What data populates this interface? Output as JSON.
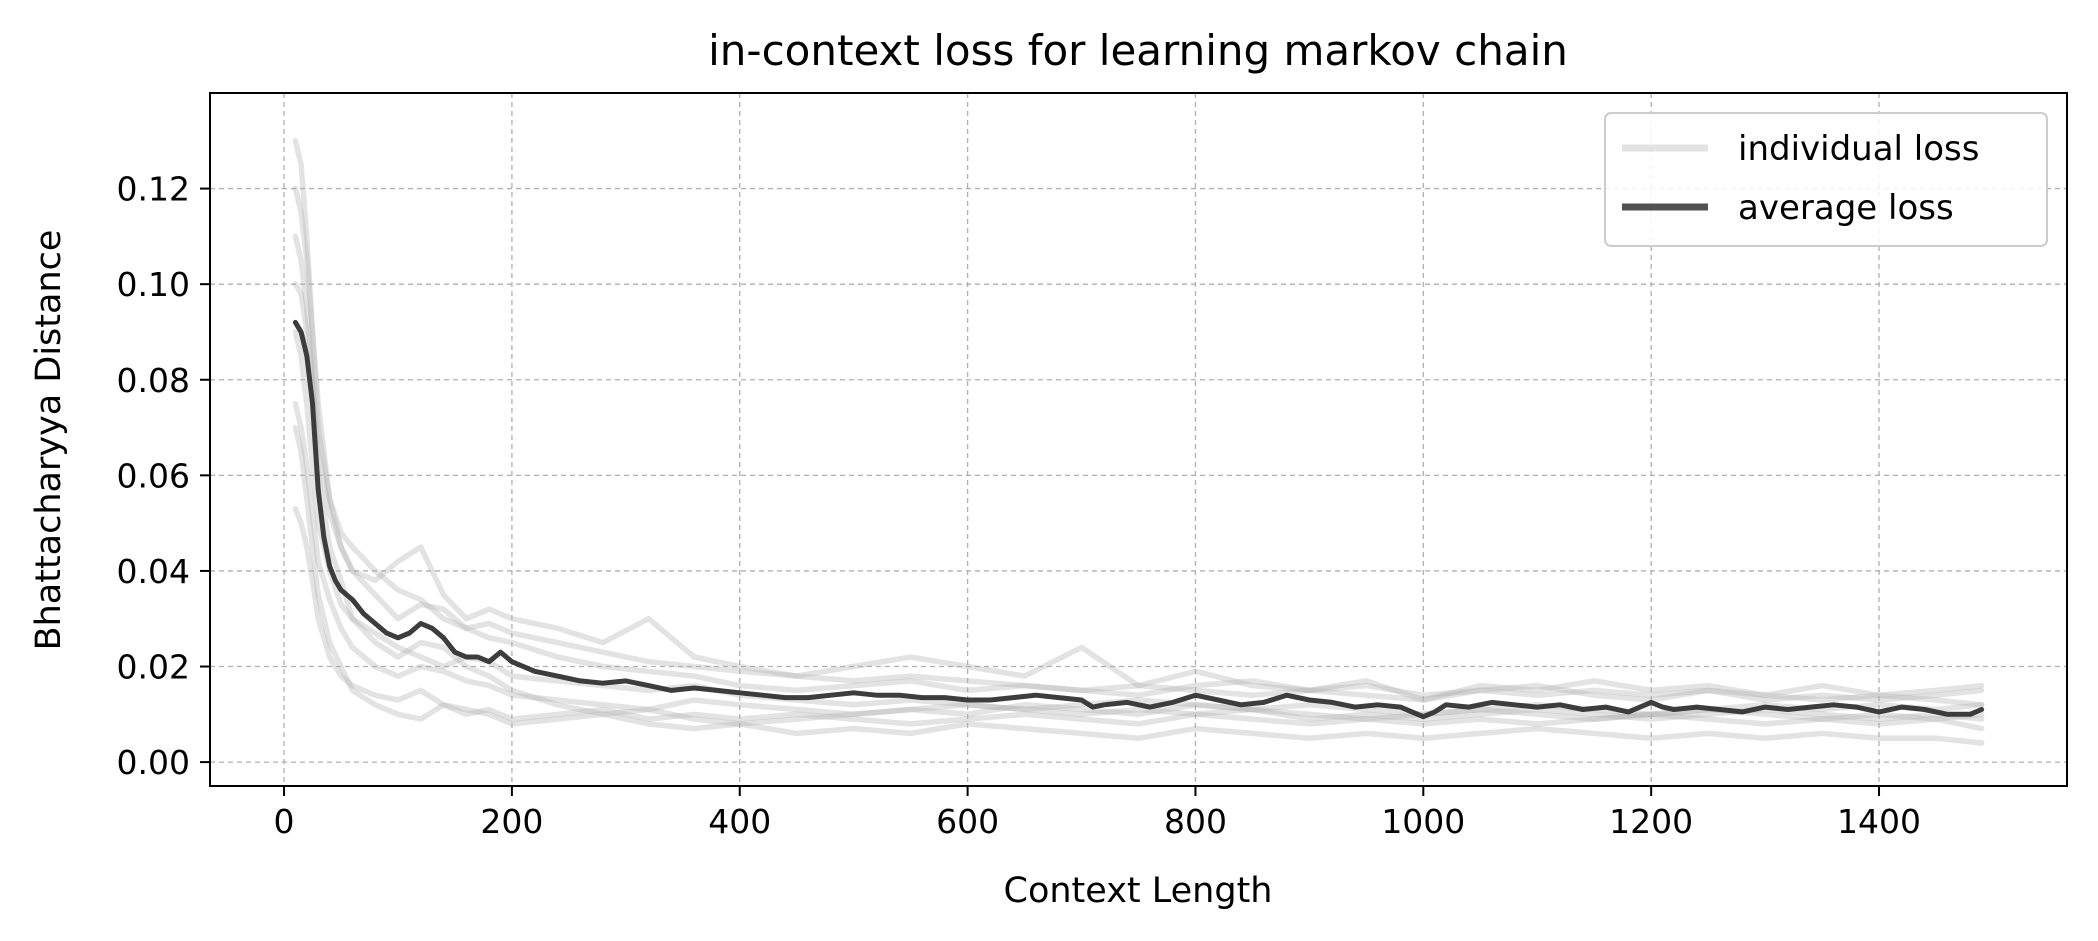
{
  "chart_data": {
    "type": "line",
    "title": "in-context loss for learning markov chain",
    "xlabel": "Context Length",
    "ylabel": "Bhattacharyya Distance",
    "xlim": [
      -65,
      1565
    ],
    "ylim": [
      -0.005,
      0.14
    ],
    "xticks": [
      0,
      200,
      400,
      600,
      800,
      1000,
      1200,
      1400
    ],
    "yticks": [
      0.0,
      0.02,
      0.04,
      0.06,
      0.08,
      0.1,
      0.12
    ],
    "ytick_format": 2,
    "grid": true,
    "legend": {
      "placement": "top-right",
      "entries": [
        "individual loss",
        "average loss"
      ]
    },
    "colors": {
      "individual": "#b0b0b0",
      "average": "#333333",
      "grid": "#b0b0b0"
    },
    "series": [
      {
        "name": "average loss",
        "role": "average",
        "x": [
          10,
          15,
          20,
          25,
          30,
          35,
          40,
          45,
          50,
          60,
          70,
          80,
          90,
          100,
          110,
          120,
          130,
          140,
          150,
          160,
          170,
          180,
          190,
          200,
          220,
          240,
          260,
          280,
          300,
          320,
          340,
          360,
          380,
          400,
          420,
          440,
          460,
          480,
          500,
          520,
          540,
          560,
          580,
          600,
          620,
          640,
          660,
          680,
          700,
          710,
          720,
          740,
          760,
          780,
          800,
          820,
          840,
          860,
          880,
          900,
          920,
          940,
          960,
          980,
          1000,
          1010,
          1020,
          1040,
          1060,
          1080,
          1100,
          1120,
          1140,
          1160,
          1180,
          1200,
          1210,
          1220,
          1240,
          1260,
          1280,
          1300,
          1320,
          1340,
          1360,
          1380,
          1400,
          1420,
          1440,
          1460,
          1480,
          1490
        ],
        "y": [
          0.092,
          0.09,
          0.085,
          0.075,
          0.057,
          0.047,
          0.041,
          0.038,
          0.036,
          0.034,
          0.031,
          0.029,
          0.027,
          0.026,
          0.027,
          0.029,
          0.028,
          0.026,
          0.023,
          0.022,
          0.022,
          0.021,
          0.023,
          0.021,
          0.019,
          0.018,
          0.017,
          0.0165,
          0.017,
          0.016,
          0.015,
          0.0155,
          0.015,
          0.0145,
          0.014,
          0.0135,
          0.0135,
          0.014,
          0.0145,
          0.014,
          0.014,
          0.0135,
          0.0135,
          0.013,
          0.013,
          0.0135,
          0.014,
          0.0135,
          0.013,
          0.0115,
          0.012,
          0.0125,
          0.0115,
          0.0125,
          0.014,
          0.013,
          0.012,
          0.0125,
          0.014,
          0.013,
          0.0125,
          0.0115,
          0.012,
          0.0115,
          0.0095,
          0.0105,
          0.012,
          0.0115,
          0.0125,
          0.012,
          0.0115,
          0.012,
          0.011,
          0.0115,
          0.0105,
          0.0125,
          0.0115,
          0.011,
          0.0115,
          0.011,
          0.0105,
          0.0115,
          0.011,
          0.0115,
          0.012,
          0.0115,
          0.0105,
          0.0115,
          0.011,
          0.01,
          0.01,
          0.011
        ]
      },
      {
        "name": "",
        "role": "individual",
        "x": [
          10,
          15,
          20,
          25,
          30,
          40,
          50,
          60,
          80,
          100,
          120,
          140,
          160,
          180,
          200,
          240,
          280,
          320,
          360,
          400,
          450,
          500,
          550,
          600,
          650,
          700,
          750,
          800,
          850,
          900,
          950,
          1000,
          1050,
          1100,
          1150,
          1200,
          1250,
          1300,
          1350,
          1400,
          1450,
          1490
        ],
        "y": [
          0.13,
          0.125,
          0.11,
          0.09,
          0.075,
          0.055,
          0.045,
          0.04,
          0.038,
          0.042,
          0.045,
          0.035,
          0.03,
          0.032,
          0.03,
          0.028,
          0.025,
          0.03,
          0.022,
          0.02,
          0.018,
          0.02,
          0.022,
          0.02,
          0.018,
          0.024,
          0.016,
          0.019,
          0.016,
          0.015,
          0.017,
          0.013,
          0.016,
          0.015,
          0.017,
          0.015,
          0.016,
          0.014,
          0.016,
          0.014,
          0.015,
          0.016
        ]
      },
      {
        "name": "",
        "role": "individual",
        "x": [
          10,
          15,
          20,
          25,
          30,
          40,
          50,
          60,
          80,
          100,
          120,
          140,
          160,
          180,
          200,
          240,
          280,
          320,
          360,
          400,
          450,
          500,
          550,
          600,
          650,
          700,
          750,
          800,
          850,
          900,
          950,
          1000,
          1050,
          1100,
          1150,
          1200,
          1250,
          1300,
          1350,
          1400,
          1450,
          1490
        ],
        "y": [
          0.11,
          0.105,
          0.095,
          0.08,
          0.06,
          0.045,
          0.038,
          0.03,
          0.025,
          0.022,
          0.025,
          0.024,
          0.02,
          0.018,
          0.015,
          0.012,
          0.01,
          0.011,
          0.009,
          0.008,
          0.009,
          0.01,
          0.011,
          0.01,
          0.012,
          0.011,
          0.01,
          0.012,
          0.011,
          0.009,
          0.01,
          0.009,
          0.01,
          0.011,
          0.01,
          0.009,
          0.01,
          0.011,
          0.01,
          0.009,
          0.01,
          0.009
        ]
      },
      {
        "name": "",
        "role": "individual",
        "x": [
          10,
          15,
          20,
          25,
          30,
          40,
          50,
          60,
          80,
          100,
          120,
          140,
          160,
          180,
          200,
          240,
          280,
          320,
          360,
          400,
          450,
          500,
          550,
          600,
          650,
          700,
          750,
          800,
          850,
          900,
          950,
          1000,
          1050,
          1100,
          1150,
          1200,
          1250,
          1300,
          1350,
          1400,
          1450,
          1490
        ],
        "y": [
          0.07,
          0.065,
          0.055,
          0.045,
          0.035,
          0.025,
          0.02,
          0.015,
          0.012,
          0.01,
          0.009,
          0.012,
          0.011,
          0.01,
          0.008,
          0.009,
          0.01,
          0.008,
          0.007,
          0.008,
          0.006,
          0.007,
          0.006,
          0.008,
          0.007,
          0.006,
          0.005,
          0.007,
          0.006,
          0.005,
          0.006,
          0.005,
          0.006,
          0.007,
          0.006,
          0.005,
          0.006,
          0.005,
          0.006,
          0.005,
          0.005,
          0.004
        ]
      },
      {
        "name": "",
        "role": "individual",
        "x": [
          10,
          15,
          20,
          25,
          30,
          40,
          50,
          60,
          80,
          100,
          120,
          140,
          160,
          180,
          200,
          240,
          280,
          320,
          360,
          400,
          450,
          500,
          550,
          600,
          650,
          700,
          750,
          800,
          850,
          900,
          950,
          1000,
          1050,
          1100,
          1150,
          1200,
          1250,
          1300,
          1350,
          1400,
          1450,
          1490
        ],
        "y": [
          0.1,
          0.098,
          0.09,
          0.078,
          0.065,
          0.052,
          0.045,
          0.04,
          0.035,
          0.03,
          0.033,
          0.032,
          0.028,
          0.026,
          0.025,
          0.022,
          0.02,
          0.019,
          0.018,
          0.016,
          0.015,
          0.016,
          0.017,
          0.015,
          0.016,
          0.015,
          0.014,
          0.016,
          0.017,
          0.015,
          0.014,
          0.013,
          0.015,
          0.014,
          0.015,
          0.014,
          0.015,
          0.013,
          0.014,
          0.013,
          0.014,
          0.015
        ]
      },
      {
        "name": "",
        "role": "individual",
        "x": [
          10,
          15,
          20,
          25,
          30,
          40,
          50,
          60,
          80,
          100,
          120,
          140,
          160,
          180,
          200,
          240,
          280,
          320,
          360,
          400,
          450,
          500,
          550,
          600,
          650,
          700,
          750,
          800,
          850,
          900,
          950,
          1000,
          1050,
          1100,
          1150,
          1200,
          1250,
          1300,
          1350,
          1400,
          1450,
          1490
        ],
        "y": [
          0.053,
          0.05,
          0.045,
          0.038,
          0.03,
          0.022,
          0.018,
          0.016,
          0.014,
          0.013,
          0.015,
          0.012,
          0.01,
          0.011,
          0.009,
          0.01,
          0.011,
          0.009,
          0.01,
          0.009,
          0.01,
          0.009,
          0.008,
          0.009,
          0.01,
          0.009,
          0.008,
          0.01,
          0.009,
          0.008,
          0.009,
          0.008,
          0.009,
          0.008,
          0.009,
          0.01,
          0.009,
          0.008,
          0.009,
          0.008,
          0.009,
          0.01
        ]
      },
      {
        "name": "",
        "role": "individual",
        "x": [
          10,
          15,
          20,
          25,
          30,
          40,
          50,
          60,
          80,
          100,
          120,
          140,
          160,
          180,
          200,
          240,
          280,
          320,
          360,
          400,
          450,
          500,
          550,
          600,
          650,
          700,
          750,
          800,
          850,
          900,
          950,
          1000,
          1050,
          1100,
          1150,
          1200,
          1250,
          1300,
          1350,
          1400,
          1450,
          1490
        ],
        "y": [
          0.12,
          0.115,
          0.105,
          0.09,
          0.07,
          0.055,
          0.048,
          0.045,
          0.04,
          0.036,
          0.034,
          0.03,
          0.028,
          0.029,
          0.027,
          0.025,
          0.023,
          0.021,
          0.02,
          0.019,
          0.018,
          0.017,
          0.018,
          0.017,
          0.016,
          0.015,
          0.016,
          0.015,
          0.014,
          0.015,
          0.016,
          0.014,
          0.015,
          0.016,
          0.014,
          0.013,
          0.015,
          0.014,
          0.013,
          0.014,
          0.013,
          0.012
        ]
      },
      {
        "name": "",
        "role": "individual",
        "x": [
          10,
          15,
          20,
          25,
          30,
          40,
          50,
          60,
          80,
          100,
          120,
          140,
          160,
          180,
          200,
          240,
          280,
          320,
          360,
          400,
          450,
          500,
          550,
          600,
          650,
          700,
          750,
          800,
          850,
          900,
          950,
          1000,
          1050,
          1100,
          1150,
          1200,
          1250,
          1300,
          1350,
          1400,
          1450,
          1490
        ],
        "y": [
          0.09,
          0.085,
          0.075,
          0.062,
          0.05,
          0.04,
          0.033,
          0.03,
          0.027,
          0.024,
          0.022,
          0.02,
          0.022,
          0.021,
          0.018,
          0.017,
          0.016,
          0.015,
          0.016,
          0.014,
          0.013,
          0.012,
          0.013,
          0.012,
          0.011,
          0.012,
          0.013,
          0.012,
          0.011,
          0.012,
          0.011,
          0.01,
          0.011,
          0.012,
          0.011,
          0.01,
          0.011,
          0.012,
          0.011,
          0.012,
          0.011,
          0.012
        ]
      },
      {
        "name": "",
        "role": "individual",
        "x": [
          10,
          15,
          20,
          25,
          30,
          40,
          50,
          60,
          80,
          100,
          120,
          140,
          160,
          180,
          200,
          240,
          280,
          320,
          360,
          400,
          450,
          500,
          550,
          600,
          650,
          700,
          750,
          800,
          850,
          900,
          950,
          1000,
          1050,
          1100,
          1150,
          1200,
          1250,
          1300,
          1350,
          1400,
          1450,
          1490
        ],
        "y": [
          0.075,
          0.07,
          0.062,
          0.052,
          0.042,
          0.034,
          0.028,
          0.024,
          0.02,
          0.018,
          0.02,
          0.019,
          0.017,
          0.016,
          0.014,
          0.013,
          0.012,
          0.011,
          0.013,
          0.012,
          0.011,
          0.01,
          0.011,
          0.012,
          0.011,
          0.01,
          0.011,
          0.01,
          0.011,
          0.01,
          0.009,
          0.01,
          0.011,
          0.01,
          0.009,
          0.01,
          0.011,
          0.01,
          0.009,
          0.01,
          0.009,
          0.007
        ]
      }
    ]
  }
}
